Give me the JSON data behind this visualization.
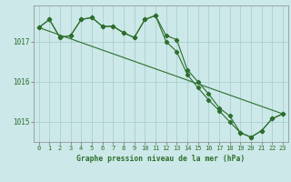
{
  "title": "Graphe pression niveau de la mer (hPa)",
  "background_color": "#cce8e8",
  "grid_color": "#aacfcf",
  "line_color": "#2d6e2d",
  "marker_color": "#2d6e2d",
  "xlim": [
    -0.5,
    23.5
  ],
  "ylim": [
    1014.5,
    1017.9
  ],
  "yticks": [
    1015,
    1016,
    1017
  ],
  "xticks": [
    0,
    1,
    2,
    3,
    4,
    5,
    6,
    7,
    8,
    9,
    10,
    11,
    12,
    13,
    14,
    15,
    16,
    17,
    18,
    19,
    20,
    21,
    22,
    23
  ],
  "series1_x": [
    0,
    1,
    2,
    3,
    4,
    5,
    6,
    7,
    8,
    9,
    10,
    11,
    12,
    13,
    14,
    15,
    16,
    17,
    18,
    19,
    20,
    21,
    22,
    23
  ],
  "series1_y": [
    1017.35,
    1017.55,
    1017.1,
    1017.15,
    1017.55,
    1017.6,
    1017.38,
    1017.38,
    1017.22,
    1017.1,
    1017.55,
    1017.65,
    1017.15,
    1017.05,
    1016.3,
    1016.0,
    1015.7,
    1015.35,
    1015.15,
    1014.73,
    1014.62,
    1014.78,
    1015.08,
    1015.2
  ],
  "series2_x": [
    0,
    1,
    2,
    3,
    4,
    5,
    6,
    7,
    8,
    9,
    10,
    11,
    12,
    13,
    14,
    15,
    16,
    17,
    18,
    19,
    20,
    21,
    22,
    23
  ],
  "series2_y": [
    1017.35,
    1017.55,
    1017.1,
    1017.15,
    1017.55,
    1017.6,
    1017.38,
    1017.38,
    1017.22,
    1017.1,
    1017.55,
    1017.65,
    1017.0,
    1016.75,
    1016.18,
    1015.85,
    1015.55,
    1015.28,
    1015.0,
    1014.73,
    1014.62,
    1014.78,
    1015.08,
    1015.2
  ],
  "series3_x": [
    0,
    23
  ],
  "series3_y": [
    1017.35,
    1015.2
  ]
}
